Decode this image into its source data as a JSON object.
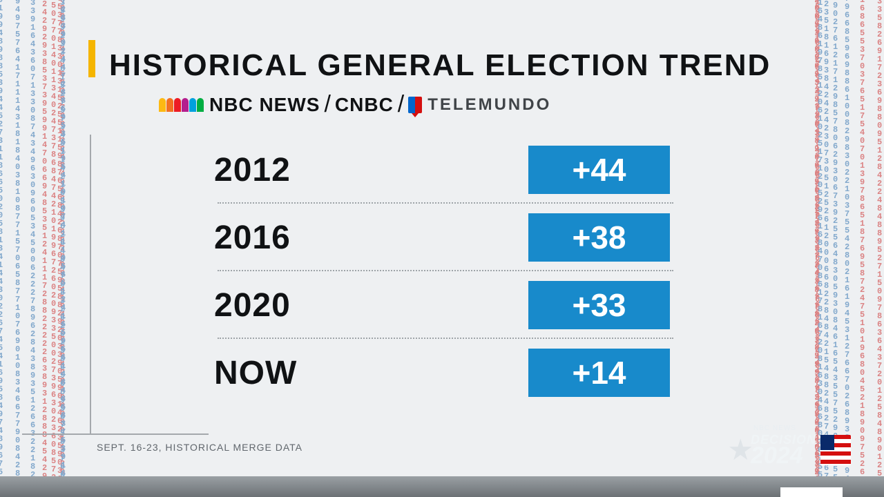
{
  "title": "HISTORICAL GENERAL ELECTION TREND",
  "source": {
    "nbc": "NBC NEWS",
    "cnbc": "CNBC",
    "telemundo": "TELEMUNDO",
    "peacock_colors": [
      "#fdb913",
      "#f37021",
      "#ed1c24",
      "#b41e8e",
      "#00a1de",
      "#00ae42"
    ]
  },
  "chart": {
    "type": "table",
    "value_bg": "#188acb",
    "value_text_color": "#ffffff",
    "divider_color": "#9ea4a8",
    "rows": [
      {
        "label": "2012",
        "value": "+44"
      },
      {
        "label": "2016",
        "value": "+38"
      },
      {
        "label": "2020",
        "value": "+33"
      },
      {
        "label": "NOW",
        "value": "+14"
      }
    ]
  },
  "footnote": "SEPT. 16-23, HISTORICAL MERGE DATA",
  "corner_logo": {
    "top": "NBC NEWS",
    "word": "DECISION",
    "year": "2024"
  },
  "colors": {
    "accent": "#f5b500",
    "bg": "#eef0f2",
    "deco_red": "#cc2b2b",
    "deco_blue": "#2b6fae"
  }
}
